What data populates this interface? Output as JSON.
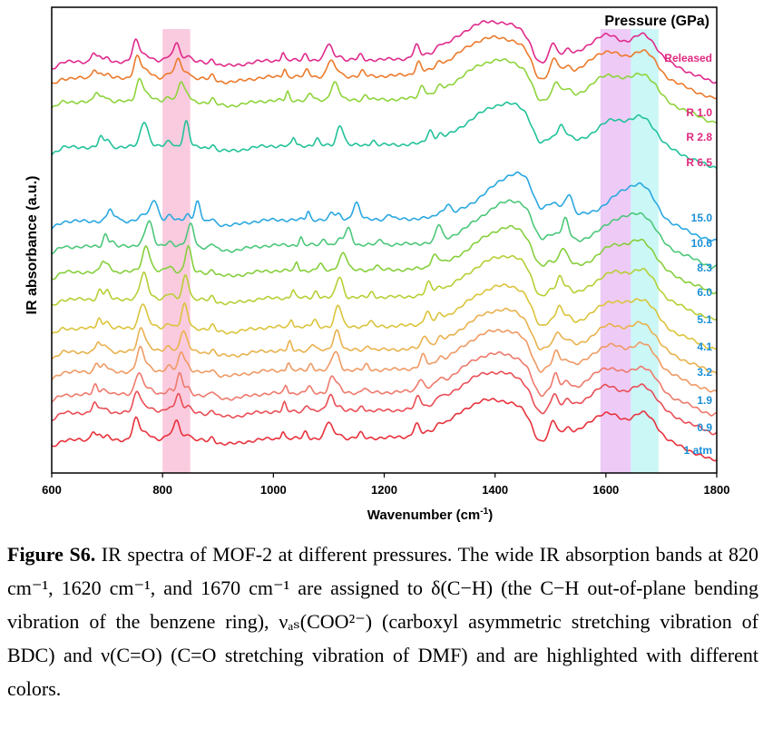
{
  "chart_data": {
    "type": "line",
    "xlabel": "Wavenumber (cm",
    "xlabel_sup": "-1",
    "xlabel_end": ")",
    "ylabel": "IR absorbance (a.u.)",
    "xlim": [
      600,
      1800
    ],
    "xticks": [
      "600",
      "800",
      "1000",
      "1200",
      "1400",
      "1600",
      "1800"
    ],
    "legend_title": "Pressure (GPa)",
    "bands": [
      {
        "x0": 800,
        "x1": 850,
        "color": "#f7a8c8"
      },
      {
        "x0": 1590,
        "x1": 1645,
        "color": "#e2a8f2"
      },
      {
        "x0": 1645,
        "x1": 1695,
        "color": "#a8f2f2"
      }
    ],
    "series": [
      {
        "name": "1 atm",
        "color": "#e8323c",
        "offset": 0
      },
      {
        "name": "0.9",
        "color": "#ea4e56",
        "offset": 1
      },
      {
        "name": "1.9",
        "color": "#ee7a6c",
        "offset": 2
      },
      {
        "name": "3.2",
        "color": "#ef9a64",
        "offset": 3
      },
      {
        "name": "4.1",
        "color": "#e9b24e",
        "offset": 4
      },
      {
        "name": "5.1",
        "color": "#dbc43c",
        "offset": 5
      },
      {
        "name": "6.0",
        "color": "#b7cf36",
        "offset": 6
      },
      {
        "name": "8.3",
        "color": "#86cf3c",
        "offset": 7
      },
      {
        "name": "10.6",
        "color": "#4cc77a",
        "offset": 8
      },
      {
        "name": "15.0",
        "color": "#2aa8e0",
        "offset": 9
      },
      {
        "name": "R 6.5",
        "color": "#22c29a",
        "offset": 10
      },
      {
        "name": "R 2.8",
        "color": "#8ed43c",
        "offset": 11
      },
      {
        "name": "R 1.0",
        "color": "#ec7a2c",
        "offset": 12
      },
      {
        "name": "Released",
        "color": "#e02a8c",
        "offset": 13
      }
    ]
  },
  "caption": {
    "label": "Figure S6.",
    "text": " IR spectra of MOF-2 at different pressures. The wide IR absorption bands at 820 cm⁻¹, 1620 cm⁻¹, and 1670 cm⁻¹ are assigned to δ(C−H) (the C−H out-of-plane bending vibration of the benzene ring), νₐₛ(COO²⁻) (carboxyl asymmetric stretching vibration of BDC) and ν(C=O) (C=O stretching vibration of DMF) and are highlighted with different colors."
  }
}
